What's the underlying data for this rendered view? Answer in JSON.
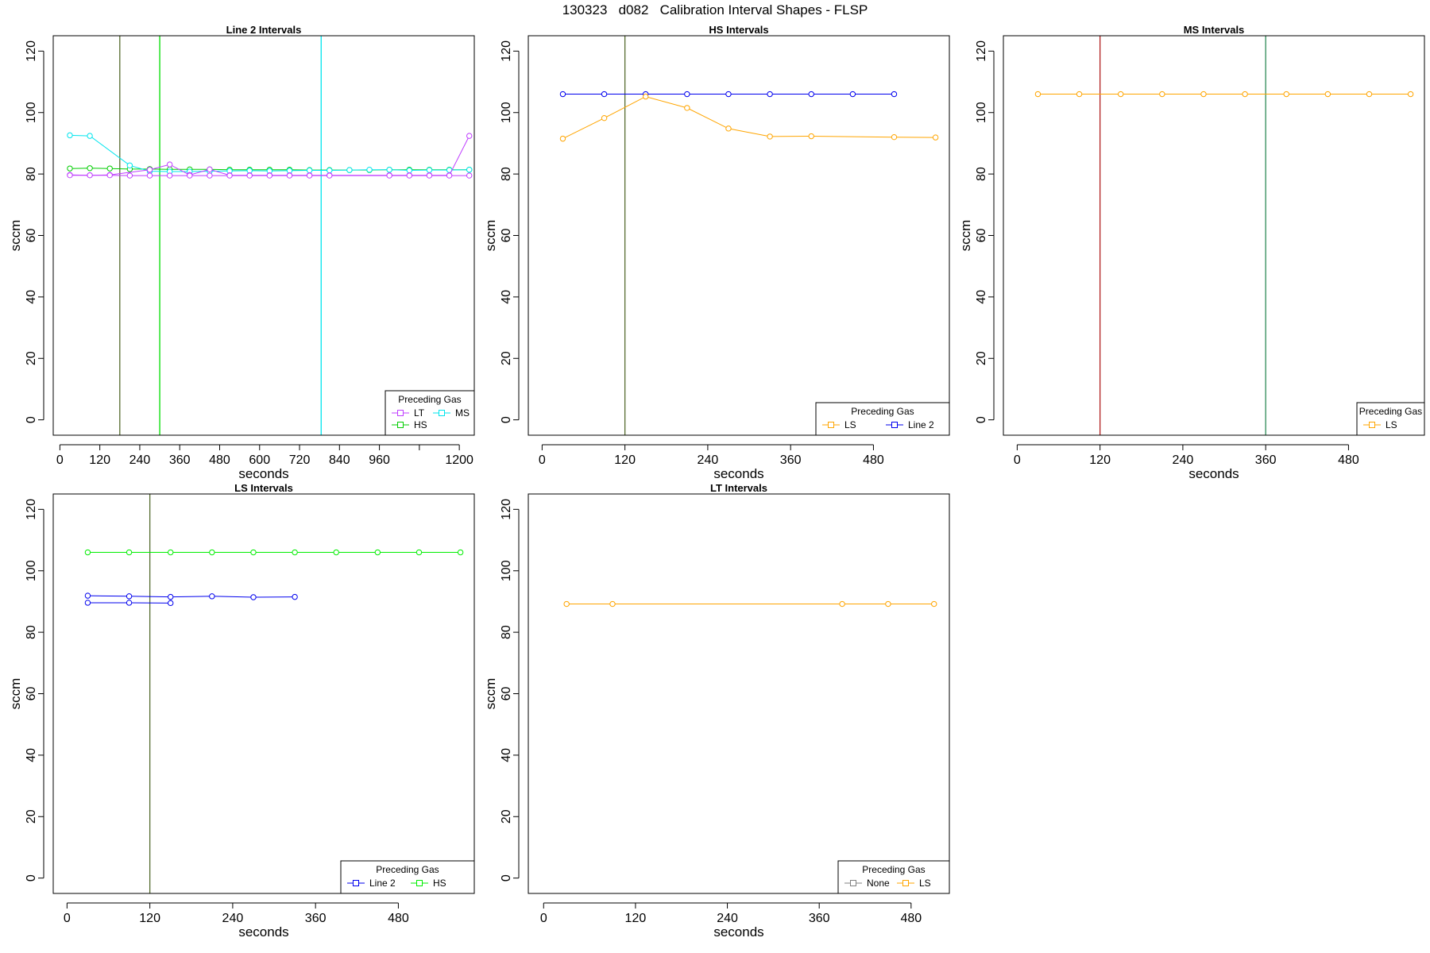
{
  "figure_title": "130323   d082   Calibration Interval Shapes - FLSP",
  "chart_data": [
    {
      "type": "line",
      "title": "Line 2 Intervals",
      "xlabel": "seconds",
      "ylabel": "sccm",
      "xlim": [
        -20,
        1245
      ],
      "ylim": [
        -5,
        125
      ],
      "xticks": [
        0,
        120,
        240,
        360,
        480,
        600,
        720,
        840,
        960,
        1080,
        1200
      ],
      "xtick_labels": [
        "0",
        "120",
        "240",
        "360",
        "480",
        "600",
        "720",
        "840",
        "960",
        "",
        "1200"
      ],
      "yticks": [
        0,
        20,
        40,
        60,
        80,
        100,
        120
      ],
      "vlines": [
        {
          "x": 180,
          "color": "#556b2f"
        },
        {
          "x": 300,
          "color": "#00dd00"
        },
        {
          "x": 785,
          "color": "#00e5ee"
        }
      ],
      "legend": {
        "title": "Preceding Gas",
        "position": "bottom-right",
        "columns": 2,
        "entries": [
          {
            "name": "LT",
            "color": "#bf3eff"
          },
          {
            "name": "MS",
            "color": "#00e5ee"
          },
          {
            "name": "HS",
            "color": "#00cd00"
          }
        ]
      },
      "series": [
        {
          "name": "HS",
          "color": "#00cd00",
          "x": [
            30,
            90,
            150,
            210,
            270,
            330,
            390,
            450,
            510,
            570,
            630,
            690,
            750,
            810,
            870,
            930,
            990,
            1050,
            1110,
            1170,
            1230
          ],
          "y": [
            81.8,
            81.9,
            81.8,
            81.6,
            81.6,
            81.5,
            81.5,
            81.5,
            81.4,
            81.4,
            81.4,
            81.4,
            81.3,
            81.3,
            81.3,
            81.3,
            81.4,
            81.4,
            81.4,
            81.4,
            81.4
          ]
        },
        {
          "name": "MS",
          "color": "#00e5ee",
          "x": [
            30,
            90,
            210,
            270,
            330,
            390,
            450,
            510,
            570,
            630,
            690,
            750,
            810,
            870,
            930,
            990,
            1050,
            1110,
            1170,
            1230
          ],
          "y": [
            92.6,
            92.4,
            82.8,
            80.9,
            80.8,
            80.8,
            80.9,
            81.0,
            81.1,
            81.0,
            81.1,
            81.2,
            81.2,
            81.3,
            81.4,
            81.4,
            81.2,
            81.3,
            81.3,
            81.4
          ]
        },
        {
          "name": "LT",
          "color": "#bf3eff",
          "x": [
            30,
            90,
            150,
            270,
            330,
            390,
            450,
            510,
            570,
            630,
            690,
            750,
            810,
            990,
            1050,
            1110,
            1170,
            1230
          ],
          "y": [
            79.7,
            79.6,
            79.7,
            81.4,
            83.1,
            79.7,
            81.5,
            79.6,
            79.6,
            79.6,
            79.6,
            79.6,
            79.6,
            79.6,
            79.6,
            79.6,
            79.6,
            92.4
          ]
        },
        {
          "name": "LT",
          "color": "#bf3eff",
          "x": [
            30,
            90,
            150,
            210,
            270,
            330,
            390,
            450,
            510,
            570,
            630,
            690,
            750,
            810,
            990,
            1050,
            1110,
            1170,
            1230
          ],
          "y": [
            79.6,
            79.6,
            79.6,
            79.5,
            79.5,
            79.5,
            79.5,
            79.5,
            79.5,
            79.5,
            79.5,
            79.5,
            79.5,
            79.5,
            79.5,
            79.5,
            79.5,
            79.5,
            79.5
          ]
        }
      ]
    },
    {
      "type": "line",
      "title": "HS Intervals",
      "xlabel": "seconds",
      "ylabel": "sccm",
      "xlim": [
        -20,
        590
      ],
      "ylim": [
        -5,
        125
      ],
      "xticks": [
        0,
        120,
        240,
        360,
        480
      ],
      "xtick_labels": [
        "0",
        "120",
        "240",
        "360",
        "480"
      ],
      "yticks": [
        0,
        20,
        40,
        60,
        80,
        100,
        120
      ],
      "vlines": [
        {
          "x": 120,
          "color": "#556b2f"
        }
      ],
      "legend": {
        "title": "Preceding Gas",
        "position": "bottom-right",
        "columns": 2,
        "entries": [
          {
            "name": "LS",
            "color": "#ffa500"
          },
          {
            "name": "Line 2",
            "color": "#0000ee"
          }
        ]
      },
      "series": [
        {
          "name": "Line 2",
          "color": "#0000ee",
          "x": [
            30,
            90,
            150,
            210,
            270,
            330,
            390,
            450,
            510
          ],
          "y": [
            106,
            106,
            106,
            106,
            106,
            106,
            106,
            106,
            106
          ]
        },
        {
          "name": "LS",
          "color": "#ffa500",
          "x": [
            30,
            90,
            150,
            210,
            270,
            330,
            390,
            510,
            570
          ],
          "y": [
            91.5,
            98.2,
            105.2,
            101.5,
            94.8,
            92.2,
            92.3,
            92.0,
            91.9
          ]
        }
      ]
    },
    {
      "type": "line",
      "title": "MS Intervals",
      "xlabel": "seconds",
      "ylabel": "sccm",
      "xlim": [
        -20,
        590
      ],
      "ylim": [
        -5,
        125
      ],
      "xticks": [
        0,
        120,
        240,
        360,
        480
      ],
      "xtick_labels": [
        "0",
        "120",
        "240",
        "360",
        "480"
      ],
      "yticks": [
        0,
        20,
        40,
        60,
        80,
        100,
        120
      ],
      "vlines": [
        {
          "x": 120,
          "color": "#b22222"
        },
        {
          "x": 360,
          "color": "#2e8b57"
        }
      ],
      "legend": {
        "title": "Preceding Gas",
        "position": "bottom-right",
        "columns": 1,
        "entries": [
          {
            "name": "LS",
            "color": "#ffa500"
          }
        ]
      },
      "series": [
        {
          "name": "LS",
          "color": "#ffa500",
          "x": [
            30,
            90,
            150,
            210,
            270,
            330,
            390,
            450,
            510,
            570
          ],
          "y": [
            106,
            106,
            106,
            106,
            106,
            106,
            106,
            106,
            106,
            106
          ]
        }
      ]
    },
    {
      "type": "line",
      "title": "LS Intervals",
      "xlabel": "seconds",
      "ylabel": "sccm",
      "xlim": [
        -20,
        590
      ],
      "ylim": [
        -5,
        125
      ],
      "xticks": [
        0,
        120,
        240,
        360,
        480
      ],
      "xtick_labels": [
        "0",
        "120",
        "240",
        "360",
        "480"
      ],
      "yticks": [
        0,
        20,
        40,
        60,
        80,
        100,
        120
      ],
      "vlines": [
        {
          "x": 120,
          "color": "#556b2f"
        }
      ],
      "legend": {
        "title": "Preceding Gas",
        "position": "bottom-right",
        "columns": 2,
        "entries": [
          {
            "name": "Line 2",
            "color": "#0000ee"
          },
          {
            "name": "HS",
            "color": "#00ee00"
          }
        ]
      },
      "series": [
        {
          "name": "HS",
          "color": "#00ee00",
          "x": [
            30,
            90,
            150,
            210,
            270,
            330,
            390,
            450,
            510,
            570
          ],
          "y": [
            106,
            106,
            106,
            106,
            106,
            106,
            106,
            106,
            106,
            106
          ]
        },
        {
          "name": "Line 2",
          "color": "#0000ee",
          "x": [
            30,
            90,
            150,
            210,
            270,
            330
          ],
          "y": [
            91.9,
            91.7,
            91.5,
            91.7,
            91.4,
            91.5
          ]
        },
        {
          "name": "Line 2",
          "color": "#0000ee",
          "x": [
            30,
            90,
            150
          ],
          "y": [
            89.6,
            89.6,
            89.5
          ]
        }
      ]
    },
    {
      "type": "line",
      "title": "LT Intervals",
      "xlabel": "seconds",
      "ylabel": "sccm",
      "xlim": [
        -20,
        530
      ],
      "ylim": [
        -5,
        125
      ],
      "xticks": [
        0,
        120,
        240,
        360,
        480
      ],
      "xtick_labels": [
        "0",
        "120",
        "240",
        "360",
        "480"
      ],
      "yticks": [
        0,
        20,
        40,
        60,
        80,
        100,
        120
      ],
      "vlines": [],
      "legend": {
        "title": "Preceding Gas",
        "position": "bottom-right",
        "columns": 2,
        "entries": [
          {
            "name": "None",
            "color": "#808080"
          },
          {
            "name": "LS",
            "color": "#ffa500"
          }
        ]
      },
      "series": [
        {
          "name": "LS",
          "color": "#ffa500",
          "x": [
            30,
            90,
            390,
            450,
            510
          ],
          "y": [
            89.2,
            89.2,
            89.2,
            89.2,
            89.2
          ]
        }
      ]
    }
  ]
}
